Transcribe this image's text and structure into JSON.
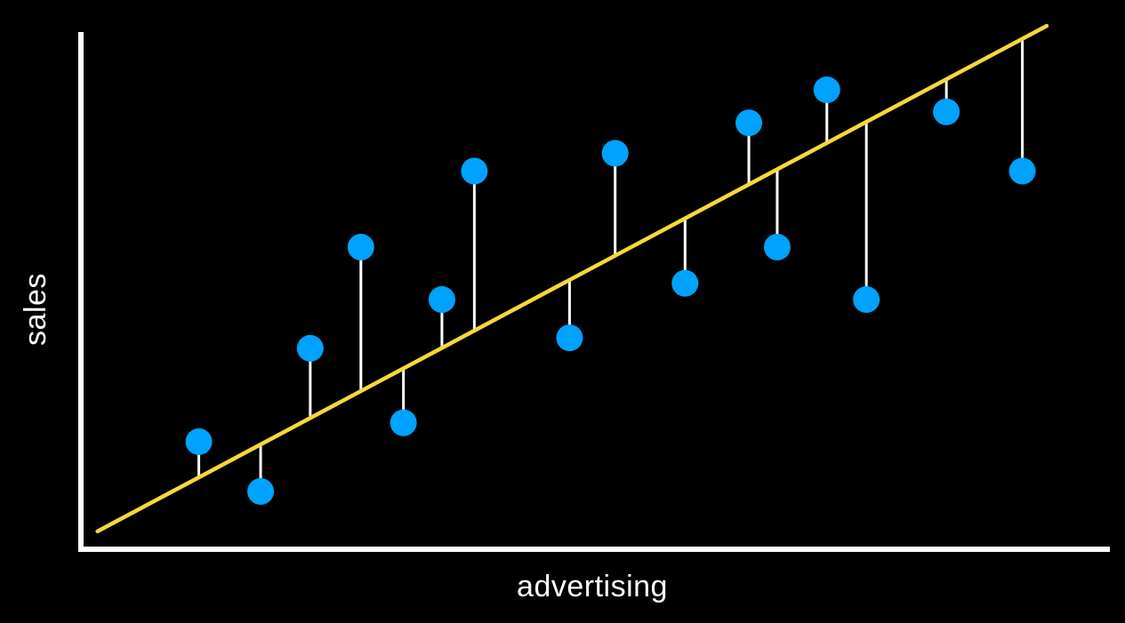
{
  "chart_data": {
    "type": "scatter",
    "title": "",
    "xlabel": "advertising",
    "ylabel": "sales",
    "xlim": [
      0,
      1000
    ],
    "ylim": [
      0,
      1000
    ],
    "grid": false,
    "ticks": false,
    "colors": {
      "background": "#000000",
      "axis": "#ffffff",
      "points": "#00a2ff",
      "regression_line": "#f5d93a",
      "residuals": "#ffffff"
    },
    "series": [
      {
        "values": [
          {
            "x": 112,
            "y": 195
          },
          {
            "x": 173,
            "y": 100
          },
          {
            "x": 222,
            "y": 373
          },
          {
            "x": 272,
            "y": 566
          },
          {
            "x": 314,
            "y": 231
          },
          {
            "x": 352,
            "y": 466
          },
          {
            "x": 384,
            "y": 711
          },
          {
            "x": 478,
            "y": 393
          },
          {
            "x": 523,
            "y": 745
          },
          {
            "x": 592,
            "y": 497
          },
          {
            "x": 655,
            "y": 803
          },
          {
            "x": 683,
            "y": 566
          },
          {
            "x": 732,
            "y": 866
          },
          {
            "x": 771,
            "y": 466
          },
          {
            "x": 850,
            "y": 824
          },
          {
            "x": 925,
            "y": 711
          }
        ]
      }
    ],
    "regression_line": {
      "x": [
        12,
        949
      ],
      "y": [
        24,
        988
      ]
    }
  }
}
